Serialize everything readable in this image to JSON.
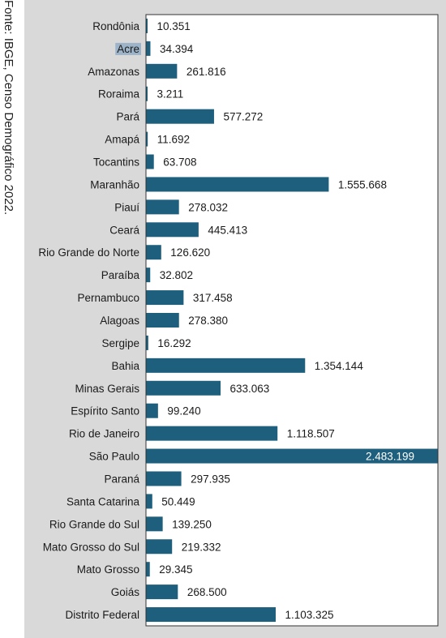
{
  "source_note": "Fonte: IBGE, Censo Demográfico 2022.",
  "colors": {
    "bar": "#1e5f7d",
    "plot_background": "#ffffff",
    "panel_background": "#d9d9d9",
    "highlight": "#9db3c8"
  },
  "highlighted_category": "Acre",
  "chart_data": {
    "type": "bar",
    "orientation": "horizontal",
    "title": "",
    "xlabel": "",
    "ylabel": "",
    "grid": false,
    "legend": "none",
    "categories": [
      "Rondônia",
      "Acre",
      "Amazonas",
      "Roraima",
      "Pará",
      "Amapá",
      "Tocantins",
      "Maranhão",
      "Piauí",
      "Ceará",
      "Rio Grande do Norte",
      "Paraíba",
      "Pernambuco",
      "Alagoas",
      "Sergipe",
      "Bahia",
      "Minas Gerais",
      "Espírito Santo",
      "Rio de Janeiro",
      "São Paulo",
      "Paraná",
      "Santa Catarina",
      "Rio Grande do Sul",
      "Mato Grosso do Sul",
      "Mato Grosso",
      "Goiás",
      "Distrito Federal"
    ],
    "values": [
      10351,
      34394,
      261816,
      3211,
      577272,
      11692,
      63708,
      1555668,
      278032,
      445413,
      126620,
      32802,
      317458,
      278380,
      16292,
      1354144,
      633063,
      99240,
      1118507,
      2483199,
      297935,
      50449,
      139250,
      219332,
      29345,
      268500,
      1103325
    ],
    "value_labels": [
      "10.351",
      "34.394",
      "261.816",
      "3.211",
      "577.272",
      "11.692",
      "63.708",
      "1.555.668",
      "278.032",
      "445.413",
      "126.620",
      "32.802",
      "317.458",
      "278.380",
      "16.292",
      "1.354.144",
      "633.063",
      "99.240",
      "1.118.507",
      "2.483.199",
      "297.935",
      "50.449",
      "139.250",
      "219.332",
      "29.345",
      "268.500",
      "1.103.325"
    ],
    "xlim": [
      0,
      2483199
    ]
  }
}
